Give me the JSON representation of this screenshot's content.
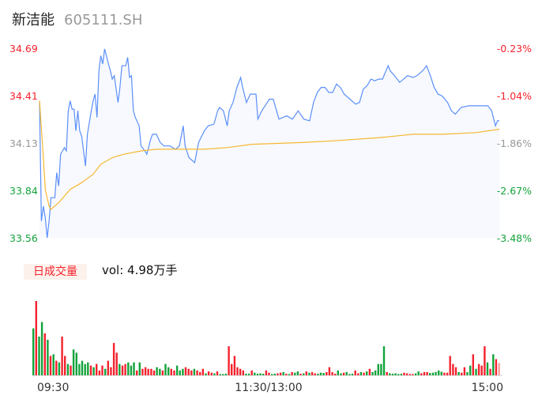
{
  "header": {
    "name": "新洁能",
    "code": "605111.SH"
  },
  "volume_panel": {
    "tag": "日成交量",
    "summary": "vol: 4.98万手"
  },
  "colors": {
    "price_line": "#5b8ff9",
    "price_fill": "#f7f9fe",
    "avg_line": "#f7b731",
    "up": "#f5222d",
    "down": "#13a33a",
    "neutral": "#999999",
    "last_bar": "#f9a0a0"
  },
  "chart_data": [
    {
      "type": "line",
      "title": "",
      "y_ticks_left": [
        {
          "value": 34.69,
          "label": "34.69",
          "tone": "up"
        },
        {
          "value": 34.41,
          "label": "34.41",
          "tone": "up"
        },
        {
          "value": 34.13,
          "label": "34.13",
          "tone": "neutral"
        },
        {
          "value": 33.84,
          "label": "33.84",
          "tone": "down"
        },
        {
          "value": 33.56,
          "label": "33.56",
          "tone": "down"
        }
      ],
      "y_ticks_right": [
        "-0.23%",
        "-1.04%",
        "-1.86%",
        "-2.67%",
        "-3.48%"
      ],
      "ylim": [
        33.56,
        34.69
      ],
      "xlim": [
        "09:30",
        "15:00"
      ],
      "grid": false,
      "series": [
        {
          "key": "price",
          "points": [
            [
              "09:30",
              34.38
            ],
            [
              "09:31",
              33.66
            ],
            [
              "09:32",
              33.75
            ],
            [
              "09:33",
              33.68
            ],
            [
              "09:34",
              33.56
            ],
            [
              "09:35",
              33.66
            ],
            [
              "09:36",
              33.8
            ],
            [
              "09:38",
              33.8
            ],
            [
              "09:39",
              33.95
            ],
            [
              "09:40",
              33.87
            ],
            [
              "09:41",
              34.06
            ],
            [
              "09:42",
              34.08
            ],
            [
              "09:43",
              34.1
            ],
            [
              "09:44",
              34.08
            ],
            [
              "09:45",
              34.32
            ],
            [
              "09:46",
              34.38
            ],
            [
              "09:47",
              34.33
            ],
            [
              "09:48",
              34.33
            ],
            [
              "09:49",
              34.2
            ],
            [
              "09:50",
              34.32
            ],
            [
              "09:51",
              34.2
            ],
            [
              "09:52",
              34.17
            ],
            [
              "09:54",
              33.99
            ],
            [
              "09:55",
              34.18
            ],
            [
              "09:57",
              34.32
            ],
            [
              "09:58",
              34.38
            ],
            [
              "09:59",
              34.42
            ],
            [
              "10:00",
              34.28
            ],
            [
              "10:01",
              34.56
            ],
            [
              "10:02",
              34.65
            ],
            [
              "10:03",
              34.6
            ],
            [
              "10:04",
              34.69
            ],
            [
              "10:06",
              34.6
            ],
            [
              "10:07",
              34.56
            ],
            [
              "10:08",
              34.51
            ],
            [
              "10:09",
              34.53
            ],
            [
              "10:11",
              34.37
            ],
            [
              "10:12",
              34.46
            ],
            [
              "10:13",
              34.59
            ],
            [
              "10:15",
              34.59
            ],
            [
              "10:16",
              34.64
            ],
            [
              "10:17",
              34.52
            ],
            [
              "10:18",
              34.53
            ],
            [
              "10:19",
              34.32
            ],
            [
              "10:20",
              34.28
            ],
            [
              "10:22",
              34.23
            ],
            [
              "10:23",
              34.11
            ],
            [
              "10:25",
              34.08
            ],
            [
              "10:26",
              34.06
            ],
            [
              "10:28",
              34.15
            ],
            [
              "10:29",
              34.18
            ],
            [
              "10:31",
              34.18
            ],
            [
              "10:33",
              34.13
            ],
            [
              "10:35",
              34.11
            ],
            [
              "10:38",
              34.11
            ],
            [
              "10:41",
              34.09
            ],
            [
              "10:43",
              34.11
            ],
            [
              "10:45",
              34.23
            ],
            [
              "10:46",
              34.11
            ],
            [
              "10:48",
              34.04
            ],
            [
              "10:51",
              34.01
            ],
            [
              "10:53",
              34.13
            ],
            [
              "10:56",
              34.2
            ],
            [
              "10:58",
              34.23
            ],
            [
              "11:01",
              34.24
            ],
            [
              "11:03",
              34.32
            ],
            [
              "11:04",
              34.34
            ],
            [
              "11:06",
              34.32
            ],
            [
              "11:08",
              34.23
            ],
            [
              "11:09",
              34.32
            ],
            [
              "11:11",
              34.37
            ],
            [
              "11:13",
              34.46
            ],
            [
              "11:15",
              34.52
            ],
            [
              "11:16",
              34.46
            ],
            [
              "11:18",
              34.37
            ],
            [
              "11:20",
              34.42
            ],
            [
              "11:23",
              34.42
            ],
            [
              "11:24",
              34.27
            ],
            [
              "11:26",
              34.32
            ],
            [
              "13:00",
              34.39
            ],
            [
              "13:02",
              34.39
            ],
            [
              "13:05",
              34.27
            ],
            [
              "13:09",
              34.29
            ],
            [
              "13:12",
              34.27
            ],
            [
              "13:15",
              34.32
            ],
            [
              "13:18",
              34.27
            ],
            [
              "13:21",
              34.26
            ],
            [
              "13:23",
              34.37
            ],
            [
              "13:25",
              34.43
            ],
            [
              "13:27",
              34.46
            ],
            [
              "13:29",
              34.46
            ],
            [
              "13:31",
              34.43
            ],
            [
              "13:33",
              34.43
            ],
            [
              "13:35",
              34.48
            ],
            [
              "13:37",
              34.46
            ],
            [
              "13:39",
              34.42
            ],
            [
              "13:42",
              34.39
            ],
            [
              "13:45",
              34.36
            ],
            [
              "13:47",
              34.37
            ],
            [
              "13:49",
              34.45
            ],
            [
              "13:51",
              34.47
            ],
            [
              "13:53",
              34.51
            ],
            [
              "13:55",
              34.5
            ],
            [
              "13:57",
              34.51
            ],
            [
              "13:59",
              34.51
            ],
            [
              "14:02",
              34.59
            ],
            [
              "14:03",
              34.56
            ],
            [
              "14:06",
              34.52
            ],
            [
              "14:08",
              34.49
            ],
            [
              "14:10",
              34.51
            ],
            [
              "14:12",
              34.53
            ],
            [
              "14:15",
              34.52
            ],
            [
              "14:17",
              34.53
            ],
            [
              "14:20",
              34.56
            ],
            [
              "14:22",
              34.59
            ],
            [
              "14:24",
              34.53
            ],
            [
              "14:26",
              34.46
            ],
            [
              "14:28",
              34.42
            ],
            [
              "14:30",
              34.41
            ],
            [
              "14:33",
              34.37
            ],
            [
              "14:35",
              34.32
            ],
            [
              "14:37",
              34.3
            ],
            [
              "14:40",
              34.34
            ],
            [
              "14:44",
              34.35
            ],
            [
              "14:47",
              34.35
            ],
            [
              "14:51",
              34.35
            ],
            [
              "14:54",
              34.35
            ],
            [
              "14:56",
              34.32
            ],
            [
              "14:58",
              34.23
            ],
            [
              "14:59",
              34.26
            ],
            [
              "15:00",
              34.26
            ]
          ]
        },
        {
          "key": "avg_price",
          "points": [
            [
              "09:30",
              34.38
            ],
            [
              "09:32",
              34.04
            ],
            [
              "09:33",
              33.85
            ],
            [
              "09:35",
              33.75
            ],
            [
              "09:36",
              33.73
            ],
            [
              "09:40",
              33.77
            ],
            [
              "09:46",
              33.85
            ],
            [
              "09:52",
              33.89
            ],
            [
              "09:58",
              33.94
            ],
            [
              "10:02",
              34.0
            ],
            [
              "10:08",
              34.04
            ],
            [
              "10:14",
              34.06
            ],
            [
              "10:23",
              34.08
            ],
            [
              "10:31",
              34.09
            ],
            [
              "10:43",
              34.09
            ],
            [
              "10:56",
              34.09
            ],
            [
              "11:08",
              34.1
            ],
            [
              "11:21",
              34.12
            ],
            [
              "13:17",
              34.13
            ],
            [
              "13:33",
              34.14
            ],
            [
              "13:58",
              34.16
            ],
            [
              "14:15",
              34.18
            ],
            [
              "14:31",
              34.18
            ],
            [
              "14:48",
              34.19
            ],
            [
              "15:00",
              34.21
            ]
          ]
        }
      ]
    },
    {
      "type": "bar",
      "title": "",
      "unit": "手",
      "x_ticks": [
        "09:30",
        "11:30/13:00",
        "15:00"
      ],
      "values": [
        1450,
        2300,
        1200,
        1650,
        1300,
        1100,
        600,
        650,
        450,
        400,
        1200,
        600,
        350,
        300,
        800,
        700,
        350,
        450,
        350,
        400,
        300,
        250,
        350,
        150,
        300,
        200,
        450,
        250,
        1000,
        700,
        350,
        300,
        350,
        400,
        300,
        400,
        150,
        400,
        200,
        250,
        200,
        200,
        150,
        250,
        200,
        150,
        350,
        250,
        200,
        150,
        300,
        150,
        200,
        250,
        200,
        150,
        200,
        150,
        100,
        200,
        60,
        120,
        80,
        60,
        120,
        40,
        40,
        50,
        900,
        350,
        600,
        250,
        200,
        150,
        50,
        50,
        150,
        80,
        50,
        60,
        50,
        150,
        80,
        40,
        50,
        60,
        80,
        100,
        50,
        40,
        100,
        80,
        120,
        50,
        60,
        120,
        80,
        100,
        60,
        50,
        80,
        70,
        100,
        250,
        100,
        50,
        150,
        60,
        80,
        100,
        40,
        50,
        150,
        60,
        100,
        80,
        120,
        200,
        100,
        150,
        350,
        350,
        900,
        100,
        60,
        50,
        60,
        40,
        50,
        80,
        60,
        40,
        40,
        60,
        120,
        60,
        100,
        100,
        70,
        80,
        100,
        150,
        110,
        80,
        80,
        600,
        350,
        250,
        100,
        80,
        250,
        100,
        300,
        650,
        200,
        350,
        300,
        900,
        400,
        200,
        650,
        500
      ],
      "directions": "grggrgrgrgrrgrggggggrgrrrgrrrrgrrgggrgrrrrrggrggrrgggrrrgrrrgrrgrgggrrrrrrggrggggrrggrrgrgrggrgrgrrgggrrrrggrgggrrgrgrgggggrgggggrrrrggrrrgggggrrrrrgrrggrgrrrgrgr",
      "last_bar": {
        "value": 380,
        "tone": "last_bar"
      }
    }
  ]
}
